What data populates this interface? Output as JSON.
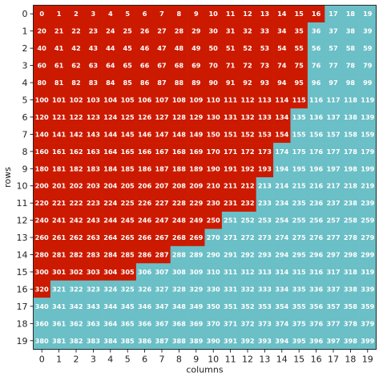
{
  "chart_data": {
    "type": "heatmap",
    "xlabel": "columns",
    "ylabel": "rows",
    "x_ticks": [
      "0",
      "1",
      "2",
      "3",
      "4",
      "5",
      "6",
      "7",
      "8",
      "9",
      "10",
      "11",
      "12",
      "13",
      "14",
      "15",
      "16",
      "17",
      "18",
      "19"
    ],
    "y_ticks": [
      "0",
      "1",
      "2",
      "3",
      "4",
      "5",
      "6",
      "7",
      "8",
      "9",
      "10",
      "11",
      "12",
      "13",
      "14",
      "15",
      "16",
      "17",
      "18",
      "19"
    ],
    "red_cells_per_row": [
      17,
      16,
      16,
      16,
      16,
      16,
      15,
      15,
      14,
      14,
      13,
      13,
      11,
      10,
      8,
      6,
      1,
      0,
      0,
      0
    ],
    "colors": {
      "red": "#cc1a00",
      "teal": "#6bbfc6",
      "text": "#ffffff"
    },
    "grid": false
  }
}
